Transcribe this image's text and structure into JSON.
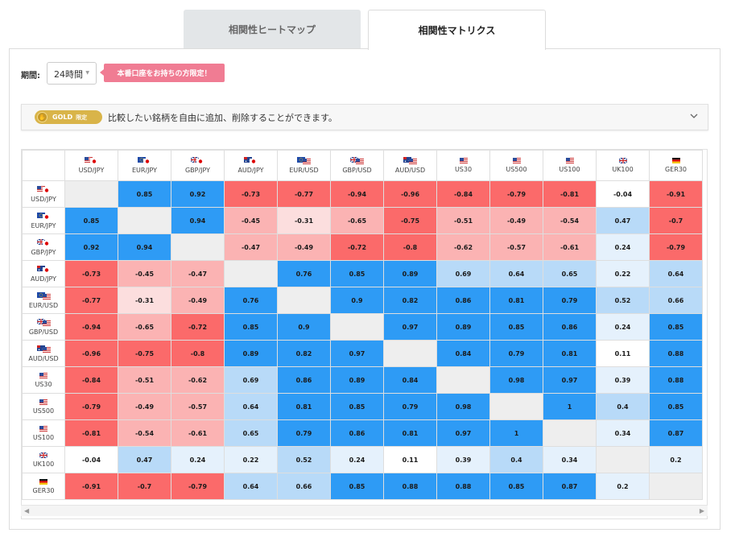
{
  "tabs": [
    {
      "label": "相関性ヒートマップ",
      "active": false
    },
    {
      "label": "相関性マトリクス",
      "active": true
    }
  ],
  "period": {
    "label": "期間:",
    "value": "24時間"
  },
  "promo": {
    "label": "本番口座をお持ちの方限定！"
  },
  "banner": {
    "badge_gold": "GOLD",
    "badge_limited": "限定",
    "text": "比較したい銘柄を自由に追加、削除することができます。"
  },
  "colors": {
    "strong_positive": "#2e9bf5",
    "weak_positive": "#b8daf8",
    "faint_positive": "#e5f1fc",
    "strong_negative": "#fb6a6a",
    "weak_negative": "#fbb3b3",
    "faint_negative": "#fcdede",
    "diagonal": "#eeeeee"
  },
  "matrix": {
    "symbols": [
      {
        "label": "USD/JPY",
        "flag": "us-jp"
      },
      {
        "label": "EUR/JPY",
        "flag": "eu-jp"
      },
      {
        "label": "GBP/JPY",
        "flag": "gb-jp"
      },
      {
        "label": "AUD/JPY",
        "flag": "au-jp"
      },
      {
        "label": "EUR/USD",
        "flag": "eu-us"
      },
      {
        "label": "GBP/USD",
        "flag": "gb-us"
      },
      {
        "label": "AUD/USD",
        "flag": "au-us"
      },
      {
        "label": "US30",
        "flag": "us"
      },
      {
        "label": "US500",
        "flag": "us"
      },
      {
        "label": "US100",
        "flag": "us"
      },
      {
        "label": "UK100",
        "flag": "gb"
      },
      {
        "label": "GER30",
        "flag": "de"
      }
    ],
    "values": [
      [
        null,
        "0.85",
        "0.92",
        "-0.73",
        "-0.77",
        "-0.94",
        "-0.96",
        "-0.84",
        "-0.79",
        "-0.81",
        "-0.04",
        "-0.91"
      ],
      [
        "0.85",
        null,
        "0.94",
        "-0.45",
        "-0.31",
        "-0.65",
        "-0.75",
        "-0.51",
        "-0.49",
        "-0.54",
        "0.47",
        "-0.7"
      ],
      [
        "0.92",
        "0.94",
        null,
        "-0.47",
        "-0.49",
        "-0.72",
        "-0.8",
        "-0.62",
        "-0.57",
        "-0.61",
        "0.24",
        "-0.79"
      ],
      [
        "-0.73",
        "-0.45",
        "-0.47",
        null,
        "0.76",
        "0.85",
        "0.89",
        "0.69",
        "0.64",
        "0.65",
        "0.22",
        "0.64"
      ],
      [
        "-0.77",
        "-0.31",
        "-0.49",
        "0.76",
        null,
        "0.9",
        "0.82",
        "0.86",
        "0.81",
        "0.79",
        "0.52",
        "0.66"
      ],
      [
        "-0.94",
        "-0.65",
        "-0.72",
        "0.85",
        "0.9",
        null,
        "0.97",
        "0.89",
        "0.85",
        "0.86",
        "0.24",
        "0.85"
      ],
      [
        "-0.96",
        "-0.75",
        "-0.8",
        "0.89",
        "0.82",
        "0.97",
        null,
        "0.84",
        "0.79",
        "0.81",
        "0.11",
        "0.88"
      ],
      [
        "-0.84",
        "-0.51",
        "-0.62",
        "0.69",
        "0.86",
        "0.89",
        "0.84",
        null,
        "0.98",
        "0.97",
        "0.39",
        "0.88"
      ],
      [
        "-0.79",
        "-0.49",
        "-0.57",
        "0.64",
        "0.81",
        "0.85",
        "0.79",
        "0.98",
        null,
        "1",
        "0.4",
        "0.85"
      ],
      [
        "-0.81",
        "-0.54",
        "-0.61",
        "0.65",
        "0.79",
        "0.86",
        "0.81",
        "0.97",
        "1",
        null,
        "0.34",
        "0.87"
      ],
      [
        "-0.04",
        "0.47",
        "0.24",
        "0.22",
        "0.52",
        "0.24",
        "0.11",
        "0.39",
        "0.4",
        "0.34",
        null,
        "0.2"
      ],
      [
        "-0.91",
        "-0.7",
        "-0.79",
        "0.64",
        "0.66",
        "0.85",
        "0.88",
        "0.88",
        "0.85",
        "0.87",
        "0.2",
        null
      ]
    ]
  }
}
